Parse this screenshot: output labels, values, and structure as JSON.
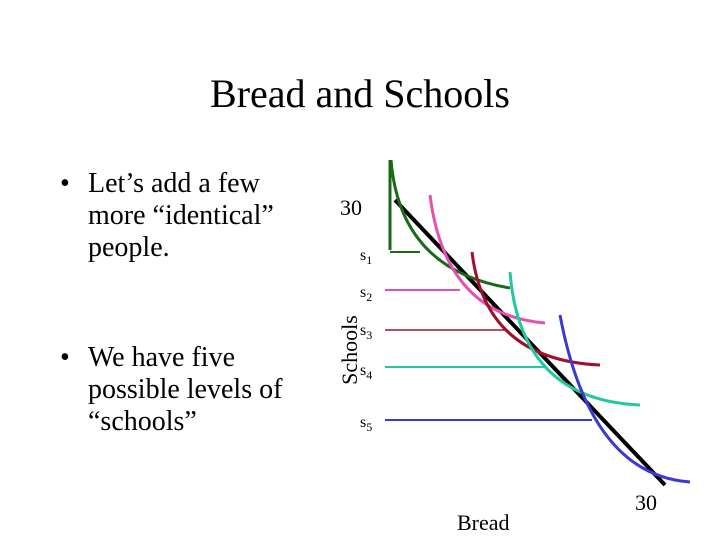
{
  "title": "Bread and Schools",
  "bullets": [
    "Let’s add a few more “identical” people.",
    "We have five possible levels of “schools”"
  ],
  "axes": {
    "y_max": "30",
    "x_max": "30",
    "x_label": "Bread",
    "y_label": "Schools"
  },
  "levels": [
    {
      "base": "s",
      "sub": "1"
    },
    {
      "base": "s",
      "sub": "2"
    },
    {
      "base": "s",
      "sub": "3"
    },
    {
      "base": "s",
      "sub": "4"
    },
    {
      "base": "s",
      "sub": "5"
    }
  ]
}
